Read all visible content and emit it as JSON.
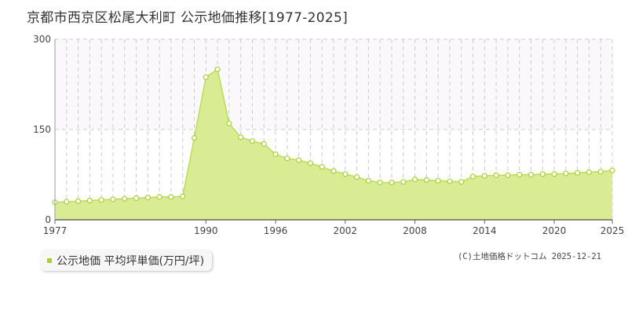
{
  "chart_data": {
    "type": "area",
    "title": "京都市西京区松尾大利町 公示地価推移[1977-2025]",
    "xlim": [
      1977,
      2025
    ],
    "ylim": [
      0,
      300
    ],
    "x_ticks": [
      "1977",
      "1990",
      "1996",
      "2002",
      "2008",
      "2014",
      "2020",
      "2025"
    ],
    "y_ticks": [
      "0",
      "150",
      "300"
    ],
    "grid": "vertical dashed per year, horizontal dashed at 150",
    "legend_position": "bottom-left",
    "series": [
      {
        "name": "公示地価 平均坪単価(万円/坪)",
        "x": [
          1977,
          1978,
          1979,
          1980,
          1981,
          1982,
          1983,
          1984,
          1985,
          1986,
          1987,
          1988,
          1989,
          1990,
          1991,
          1992,
          1993,
          1994,
          1995,
          1996,
          1997,
          1998,
          1999,
          2000,
          2001,
          2002,
          2003,
          2004,
          2005,
          2006,
          2007,
          2008,
          2009,
          2010,
          2011,
          2012,
          2013,
          2014,
          2015,
          2016,
          2017,
          2018,
          2019,
          2020,
          2021,
          2022,
          2023,
          2024,
          2025
        ],
        "values": [
          29,
          30,
          31,
          32,
          33,
          34,
          35,
          36,
          37,
          38,
          38,
          39,
          136,
          237,
          250,
          160,
          137,
          131,
          126,
          109,
          102,
          99,
          94,
          88,
          81,
          76,
          71,
          65,
          62,
          62,
          63,
          67,
          66,
          65,
          64,
          63,
          72,
          73,
          74,
          74,
          75,
          75,
          76,
          76,
          77,
          78,
          79,
          80,
          82
        ]
      }
    ]
  },
  "colors": {
    "area_fill": "#d9ec94",
    "line": "#b9dd55",
    "marker_fill": "#ffffff",
    "marker_stroke": "#a8cf3a",
    "grid": "#cccccc",
    "upper_band": "#faf8fb"
  },
  "legend": {
    "label": "公示地価 平均坪単価(万円/坪)"
  },
  "credit": "(C)土地価格ドットコム 2025-12-21"
}
